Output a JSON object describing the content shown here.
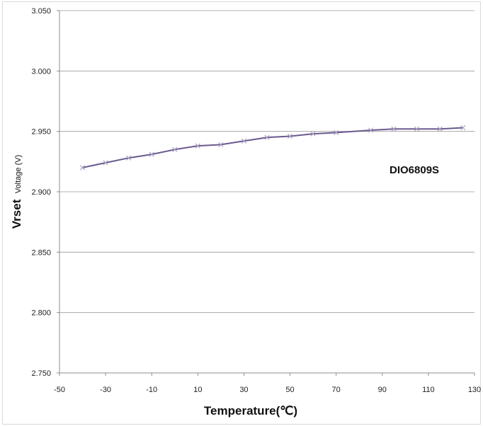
{
  "chart_data": {
    "type": "line",
    "title": "",
    "xlabel": "Temperature(℃)",
    "ylabel_main": "Vrset",
    "ylabel_sub": "Voltage (V)",
    "annotation": "DIO6809S",
    "xlim": [
      -50,
      130
    ],
    "ylim": [
      2.75,
      3.05
    ],
    "x_ticks": [
      "-50",
      "-30",
      "-10",
      "10",
      "30",
      "50",
      "70",
      "90",
      "110",
      "130"
    ],
    "y_ticks": [
      "2.750",
      "2.800",
      "2.850",
      "2.900",
      "2.950",
      "3.000",
      "3.050"
    ],
    "grid": true,
    "legend": "none",
    "series": [
      {
        "x": [
          -40,
          -30,
          -20,
          -10,
          0,
          10,
          20,
          30,
          40,
          50,
          60,
          70,
          85,
          95,
          105,
          115,
          125
        ],
        "y": [
          2.92,
          2.924,
          2.928,
          2.931,
          2.935,
          2.938,
          2.939,
          2.942,
          2.945,
          2.946,
          2.948,
          2.949,
          2.951,
          2.952,
          2.952,
          2.952,
          2.953
        ],
        "color": "#6a5a8e",
        "marker_color": "#a9a3c6"
      }
    ]
  }
}
